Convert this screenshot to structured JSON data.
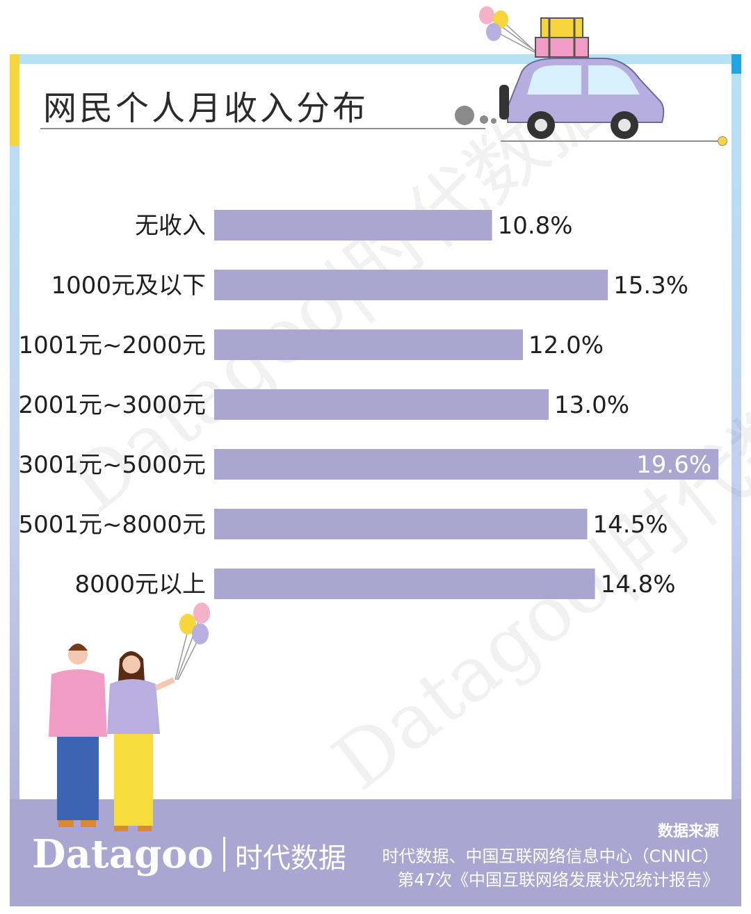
{
  "title": "网民个人月收入分布",
  "brand": {
    "latin": "Datagoo",
    "cn": "时代数据"
  },
  "watermark": "Datagoo|时代数据",
  "source": {
    "heading": "数据来源",
    "line1": "时代数据、中国互联网络信息中心（CNNIC）",
    "line2": "第47次《中国互联网络发展状况统计报告》"
  },
  "colors": {
    "bar": "#aaa6d0",
    "frame": "#b7e2f5",
    "footer": "#aaa6d2"
  },
  "chart_data": {
    "type": "bar",
    "orientation": "horizontal",
    "categories": [
      "无收入",
      "1000元及以下",
      "1001元~2000元",
      "2001元~3000元",
      "3001元~5000元",
      "5001元~8000元",
      "8000元以上"
    ],
    "values": [
      10.8,
      15.3,
      12.0,
      13.0,
      19.6,
      14.5,
      14.8
    ],
    "value_labels": [
      "10.8%",
      "15.3%",
      "12.0%",
      "13.0%",
      "19.6%",
      "14.5%",
      "14.8%"
    ],
    "unit": "%",
    "title": "网民个人月收入分布",
    "xlabel": "",
    "ylabel": "",
    "grid": false,
    "legend": "none"
  }
}
